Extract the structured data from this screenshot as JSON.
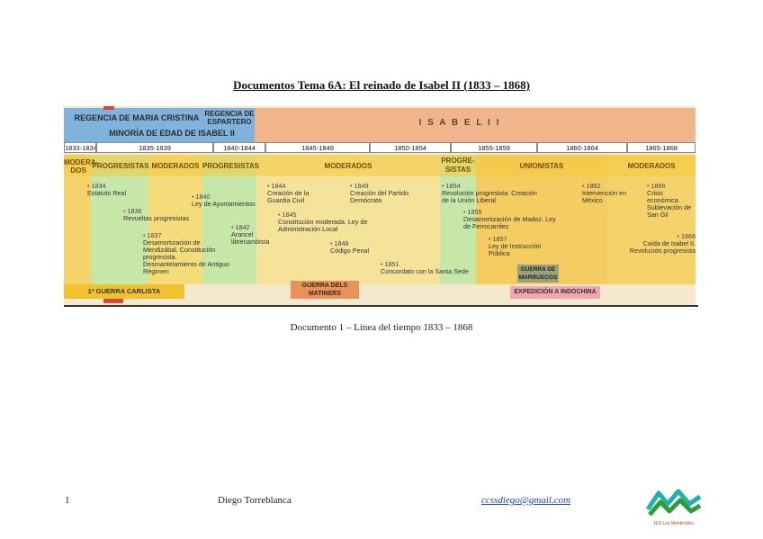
{
  "title": "Documentos Tema 6A: El reinado de Isabel II (1833 – 1868)",
  "timeline": {
    "regencies": {
      "maria_cristina": "REGENCIA DE MARIA CRISTINA",
      "espartero": "REGENCIA DE ESPARTERO",
      "minoria": "MINORÍA DE EDAD DE ISABEL II",
      "isabel": "I S A B E L   I I"
    },
    "years": [
      "1833-1834",
      "1835-1839",
      "1840-1844",
      "1845-1849",
      "1850-1854",
      "1855-1859",
      "1860-1864",
      "1865-1868"
    ],
    "periods": [
      "MODERA-DOS",
      "PROGRESISTAS",
      "MODERADOS",
      "PROGRESISTAS",
      "MODERADOS",
      "PROGRE-SISTAS",
      "UNIONISTAS",
      "MODERADOS"
    ],
    "events": [
      {
        "year": "1834",
        "text": "Estatuto Real"
      },
      {
        "year": "1836",
        "text": "Revueltas progresistas"
      },
      {
        "year": "1837",
        "text": "Desamortización de Mendizábal. Constitución progresista. Desmantelamiento de Antiguo Régimen"
      },
      {
        "year": "1840",
        "text": "Ley de Ayuntamientos"
      },
      {
        "year": "1842",
        "text": "Arancel librecambista"
      },
      {
        "year": "1844",
        "text": "Creación de la Guardia Civil"
      },
      {
        "year": "1845",
        "text": "Constitución moderada. Ley de Administración Local"
      },
      {
        "year": "1848",
        "text": "Código Penal"
      },
      {
        "year": "1849",
        "text": "Creación del Partido Demócrata"
      },
      {
        "year": "1851",
        "text": "Concordato con la Santa Sede"
      },
      {
        "year": "1854",
        "text": "Revolución progresista. Creación de la Unión Liberal"
      },
      {
        "year": "1855",
        "text": "Desamortización de Madoz. Ley de Ferrocarriles"
      },
      {
        "year": "1857",
        "text": "Ley de Instrucción Pública"
      },
      {
        "year": "1862",
        "text": "Intervención en México"
      },
      {
        "year": "1866",
        "text": "Crisis económica. Sublevación de San Gil"
      },
      {
        "year": "1868",
        "text": "Caída de Isabel II. Revolución progresista"
      }
    ],
    "wars": {
      "carlista": "1ª GUERRA CARLISTA",
      "matiners": "GUERRA DELS MATINERS",
      "marruecos": "GUERRA DE MARRUECOS",
      "indochina": "EXPEDICIÓN A INDOCHINA"
    }
  },
  "caption": "Documento 1 – Línea del tiempo 1833 – 1868",
  "footer": {
    "page": "1",
    "author": "Diego Torreblanca",
    "email": "ccssdiego@gmail.com",
    "logo_text": "IES Los Montecillos"
  }
}
